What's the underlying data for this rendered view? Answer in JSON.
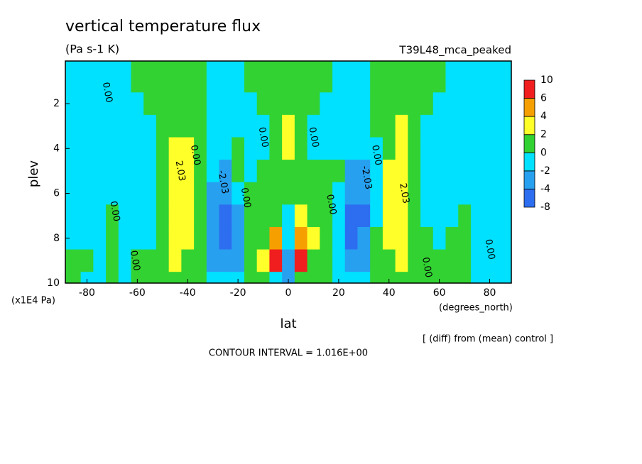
{
  "chart_data": {
    "type": "contour",
    "title": "vertical temperature flux",
    "subtitle": "(Pa s-1 K)",
    "run_label": "T39L48_mca_peaked",
    "x_label": "lat",
    "y_label": "plev",
    "x_unit": "(degrees_north)",
    "y_unit": "(x1E4 Pa)",
    "note": "[ (diff) from (mean) control ]",
    "contour_interval": "CONTOUR INTERVAL = 1.016E+00",
    "xlim": [
      -88.6,
      88.6
    ],
    "xticks": [
      -80,
      -60,
      -40,
      -20,
      0,
      20,
      40,
      60,
      80
    ],
    "ylim": [
      0.1,
      10
    ],
    "y_inverted": true,
    "yticks": [
      2,
      4,
      6,
      8,
      10
    ],
    "x": [
      -85,
      -80,
      -75,
      -70,
      -65,
      -60,
      -55,
      -50,
      -45,
      -40,
      -35,
      -30,
      -25,
      -20,
      -15,
      -10,
      -5,
      0,
      5,
      10,
      15,
      20,
      25,
      30,
      35,
      40,
      45,
      50,
      55,
      60,
      65,
      70,
      75,
      80,
      85
    ],
    "y": [
      1,
      2,
      3,
      4,
      5,
      6,
      7,
      8,
      9,
      10
    ],
    "values": [
      [
        -0.5,
        -0.5,
        -0.5,
        -0.5,
        -0.5,
        -0.5,
        -0.5,
        -0.5,
        0.5,
        0.5
      ],
      [
        -0.5,
        -0.5,
        -0.5,
        -0.5,
        -0.5,
        -0.5,
        -0.5,
        -0.5,
        0.5,
        -0.5
      ],
      [
        -0.5,
        -0.5,
        -0.5,
        -0.5,
        -0.5,
        -0.5,
        -0.5,
        -0.5,
        -0.5,
        -0.5
      ],
      [
        -0.5,
        -0.5,
        -0.5,
        -0.5,
        -0.5,
        -0.5,
        0.5,
        0.5,
        0.5,
        0.5
      ],
      [
        -0.5,
        -0.5,
        -0.5,
        -0.5,
        -0.5,
        -0.5,
        -0.5,
        -0.5,
        -0.5,
        -0.5
      ],
      [
        0.5,
        -0.5,
        -0.5,
        -0.5,
        -0.5,
        -0.5,
        -0.5,
        -0.5,
        0.5,
        0.5
      ],
      [
        0.5,
        0.5,
        -0.5,
        -0.5,
        -0.5,
        -0.5,
        -0.5,
        -0.5,
        0.5,
        0.5
      ],
      [
        0.5,
        0.5,
        0.5,
        0.5,
        0.5,
        0.5,
        0.5,
        0.5,
        0.5,
        0.5
      ],
      [
        0.5,
        0.8,
        1.2,
        2.5,
        2.8,
        3,
        3,
        3,
        2.5,
        1
      ],
      [
        0.5,
        0.8,
        1,
        2.2,
        2.5,
        2.8,
        2.8,
        2.5,
        1.5,
        0.8
      ],
      [
        0.5,
        0.5,
        0.8,
        1,
        1,
        1,
        1,
        1,
        0.8,
        0.5
      ],
      [
        -0.5,
        -0.3,
        -0.5,
        -1,
        -1.5,
        -2.5,
        -3,
        -3,
        -2.5,
        -1
      ],
      [
        -0.5,
        -0.8,
        -0.8,
        -1.5,
        -2.5,
        -3,
        -4.5,
        -4.5,
        -3,
        -1.5
      ],
      [
        -0.5,
        -0.8,
        -1,
        0.3,
        0.5,
        -0.5,
        -2.2,
        -2.5,
        -2.2,
        -0.5
      ],
      [
        0.5,
        -0.5,
        -0.8,
        -0.5,
        -0.3,
        0.5,
        0.5,
        0.5,
        0.5,
        0.5
      ],
      [
        0.5,
        0.5,
        -0.5,
        -0.3,
        0.5,
        0.5,
        0.5,
        1,
        2.5,
        0.5
      ],
      [
        0.5,
        0.5,
        0.8,
        0.8,
        1,
        1,
        1.5,
        4.5,
        7,
        -0.5
      ],
      [
        0.5,
        0.5,
        2.5,
        2.8,
        1,
        0.5,
        -0.5,
        -1,
        -2.5,
        -2.5
      ],
      [
        0.5,
        0.5,
        0.8,
        0.8,
        1,
        1,
        2.5,
        4.5,
        7,
        0.5
      ],
      [
        0.5,
        0.5,
        -0.5,
        -0.3,
        0.5,
        0.5,
        0.5,
        2.5,
        0.8,
        0.5
      ],
      [
        0.5,
        -0.5,
        -0.8,
        -0.5,
        0.5,
        0.5,
        0.5,
        0.5,
        0.5,
        0.5
      ],
      [
        -0.5,
        -0.8,
        -1,
        -0.5,
        0.5,
        -0.5,
        -1.5,
        -2,
        -1.5,
        -0.5
      ],
      [
        -0.5,
        -0.5,
        -0.8,
        -1.5,
        -2.5,
        -3,
        -4.5,
        -4.5,
        -3,
        -1.5
      ],
      [
        -0.5,
        -0.3,
        -0.5,
        -1,
        -2.5,
        -3,
        -4.5,
        -3,
        -2.5,
        -1
      ],
      [
        0.5,
        0.5,
        0.8,
        -0.5,
        -1,
        -1,
        -0.5,
        0.5,
        0.5,
        0.5
      ],
      [
        0.5,
        0.8,
        1.2,
        1.5,
        2.5,
        2.8,
        2.8,
        2.5,
        1.5,
        0.8
      ],
      [
        0.5,
        0.8,
        2.5,
        2.8,
        3,
        3,
        3,
        3,
        2.5,
        1
      ],
      [
        0.5,
        0.5,
        0.5,
        0.5,
        0.8,
        0.8,
        0.8,
        0.8,
        0.5,
        0.5
      ],
      [
        0.5,
        0.5,
        -0.5,
        -0.5,
        -0.5,
        -0.5,
        -0.5,
        0.5,
        0.5,
        0.5
      ],
      [
        0.5,
        -0.5,
        -0.5,
        -0.5,
        -0.5,
        -0.5,
        -0.5,
        -0.5,
        0.5,
        0.5
      ],
      [
        -0.5,
        -0.5,
        -0.5,
        -0.5,
        -0.5,
        -0.5,
        -0.5,
        0.5,
        0.5,
        0.5
      ],
      [
        -0.5,
        -0.5,
        -0.5,
        -0.5,
        -0.5,
        -0.5,
        0.5,
        0.5,
        0.5,
        0.5
      ],
      [
        -0.5,
        -0.5,
        -0.5,
        -0.5,
        -0.5,
        -0.5,
        -0.5,
        -0.5,
        -0.5,
        -0.5
      ],
      [
        -0.5,
        -0.5,
        -0.5,
        -0.5,
        -0.5,
        -0.5,
        -0.5,
        -0.5,
        -0.5,
        -0.5
      ],
      [
        -0.5,
        -0.5,
        -0.5,
        -0.5,
        -0.5,
        -0.5,
        -0.5,
        -0.5,
        -0.5,
        -0.5
      ]
    ],
    "colorbar": {
      "levels": [
        -8,
        -4,
        -2,
        0,
        2,
        4,
        6,
        10
      ],
      "colors": [
        "#2d6ef0",
        "#28a0f0",
        "#00e0ff",
        "#32d232",
        "#ffff2a",
        "#f5a000",
        "#f01e1e"
      ]
    },
    "contour_labels": [
      {
        "label": "0.00",
        "x": -72,
        "y": 1.5
      },
      {
        "label": "0.00",
        "x": -69,
        "y": 6.8
      },
      {
        "label": "0.00",
        "x": -61,
        "y": 9
      },
      {
        "label": "0.00",
        "x": -37,
        "y": 4.3
      },
      {
        "label": "2.03",
        "x": -43,
        "y": 5
      },
      {
        "label": "-2.03",
        "x": -26,
        "y": 5.5
      },
      {
        "label": "0.00",
        "x": -17,
        "y": 6.2
      },
      {
        "label": "0.00",
        "x": -10,
        "y": 3.5
      },
      {
        "label": "0.00",
        "x": 10,
        "y": 3.5
      },
      {
        "label": "0.00",
        "x": 17,
        "y": 6.5
      },
      {
        "label": "-2.03",
        "x": 31,
        "y": 5.3
      },
      {
        "label": "0.00",
        "x": 35,
        "y": 4.3
      },
      {
        "label": "2.03",
        "x": 46,
        "y": 6
      },
      {
        "label": "0.00",
        "x": 55,
        "y": 9.3
      },
      {
        "label": "0.00",
        "x": 80,
        "y": 8.5
      }
    ]
  }
}
